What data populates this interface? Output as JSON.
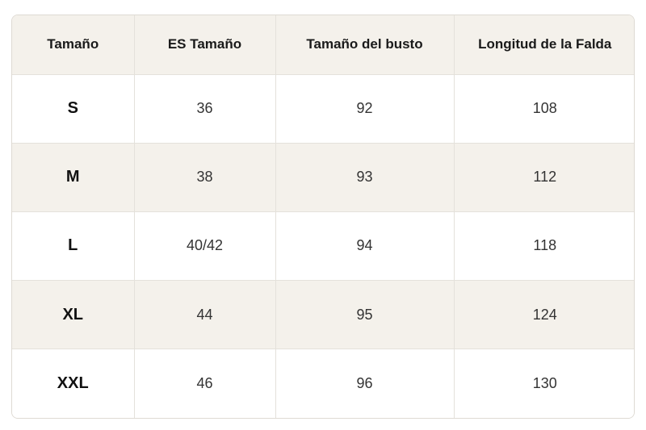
{
  "table": {
    "header": [
      "Tamaño",
      "ES Tamaño",
      "Tamaño del busto",
      "Longitud de la Falda"
    ],
    "rows": [
      [
        "S",
        36,
        92,
        108
      ],
      [
        "M",
        38,
        93,
        112
      ],
      [
        "L",
        "40/42",
        94,
        118
      ],
      [
        "XL",
        44,
        95,
        124
      ],
      [
        "XXL",
        46,
        96,
        130
      ]
    ]
  }
}
